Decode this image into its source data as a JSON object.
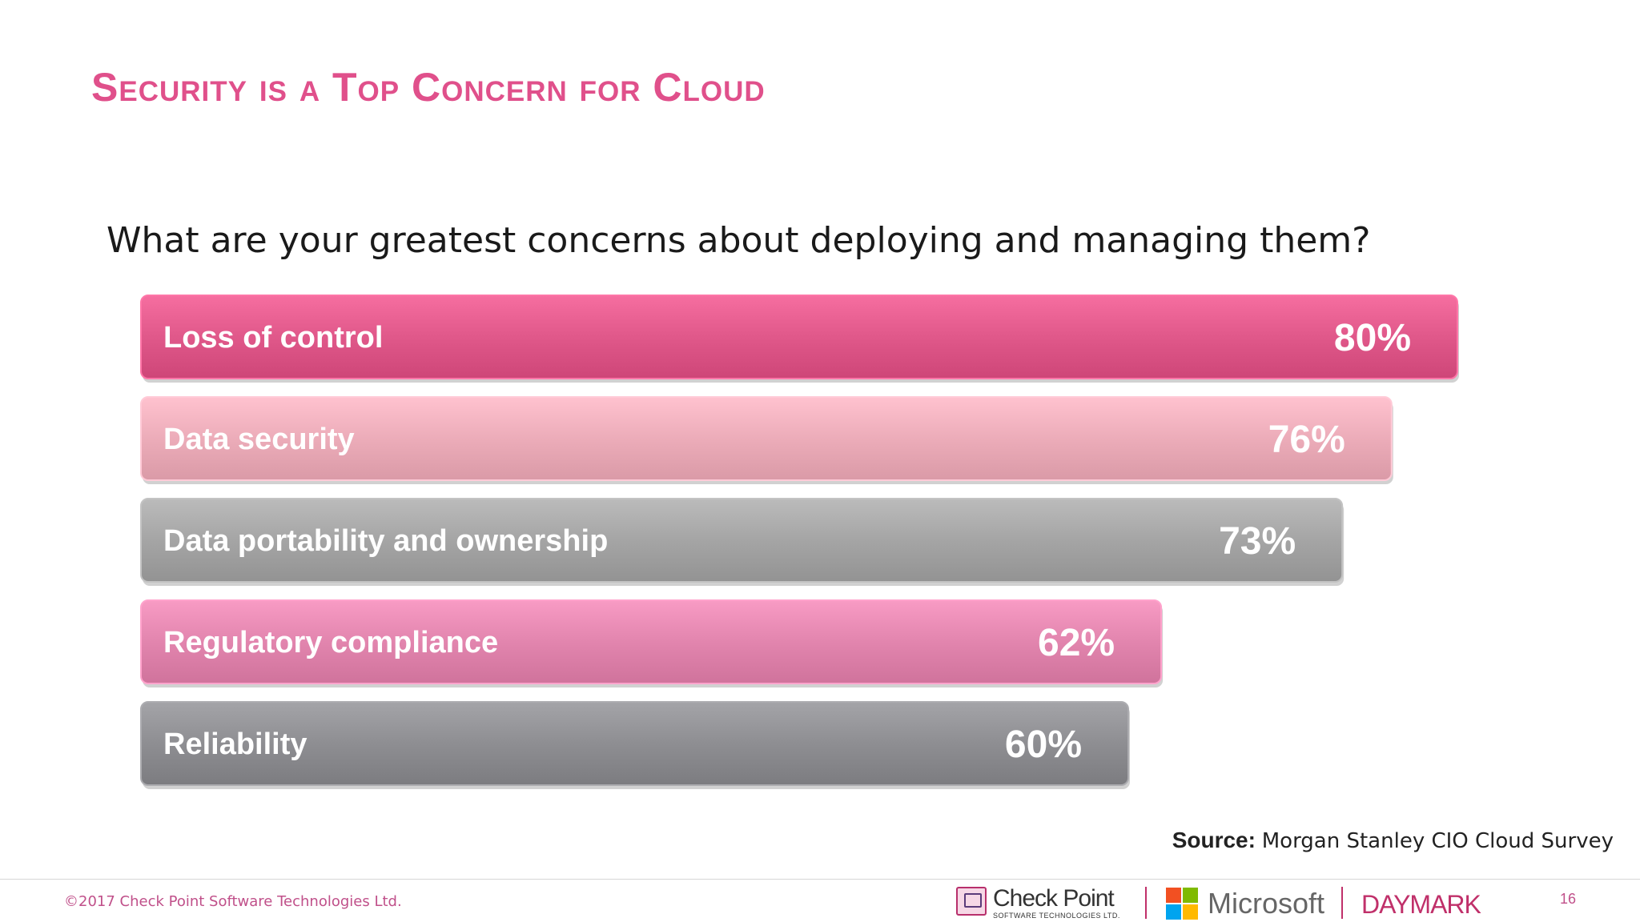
{
  "slide": {
    "title": "Security is a Top Concern for Cloud",
    "question": "What are your greatest concerns about deploying and managing them?",
    "source_key": "Source:",
    "source_value": "Morgan Stanley CIO Cloud Survey",
    "copyright": "©2017 Check Point Software Technologies Ltd.",
    "page_number": "16"
  },
  "logos": {
    "checkpoint_name": "Check Point",
    "checkpoint_sub": "SOFTWARE TECHNOLOGIES LTD.",
    "microsoft_name": "Microsoft",
    "daymark_name": "DAYMARK"
  },
  "chart_data": {
    "type": "bar",
    "orientation": "horizontal",
    "categories": [
      "Loss of control",
      "Data security",
      "Data portability and ownership",
      "Regulatory compliance",
      "Reliability"
    ],
    "values": [
      80,
      76,
      73,
      62,
      60
    ],
    "value_labels": [
      "80%",
      "76%",
      "73%",
      "62%",
      "60%"
    ],
    "colors": [
      "#e0588a",
      "#ecacb9",
      "#a5a5a5",
      "#e285ae",
      "#8e8e92"
    ],
    "title": "",
    "xlabel": "",
    "ylabel": "",
    "grid": false,
    "legend": "none"
  }
}
